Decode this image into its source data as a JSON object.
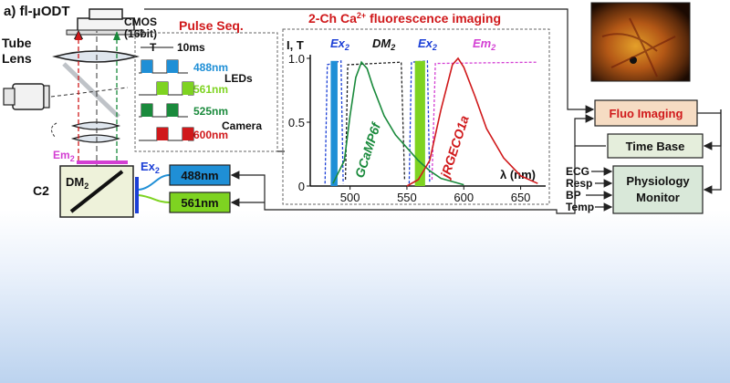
{
  "panel": {
    "label": "a) fl-μODT",
    "cmos_label_1": "CMOS",
    "cmos_label_2": "(16bit)",
    "tube_lens_1": "Tube",
    "tube_lens_2": "Lens",
    "c2_label": "C2",
    "dm2_label": "DM",
    "dm2_sub": "2",
    "em2_label": "Em",
    "em2_sub": "2",
    "ex2_label": "Ex",
    "ex2_sub": "2"
  },
  "lasers": [
    {
      "label": "488nm",
      "color": "#1f8fd6"
    },
    {
      "label": "561nm",
      "color": "#7ed321"
    }
  ],
  "pulse_seq": {
    "title": "Pulse Seq.",
    "T_label": "T",
    "period_label": "10ms",
    "leds_label": "LEDs",
    "camera_label": "Camera",
    "rows": [
      {
        "label": "488nm",
        "color": "#1f8fd6"
      },
      {
        "label": "561nm",
        "color": "#7ed321"
      },
      {
        "label": "525nm",
        "color": "#1a8a3c"
      },
      {
        "label": "600nm",
        "color": "#d0191b"
      }
    ]
  },
  "spectra": {
    "title": "2-Ch Ca",
    "title_sup": "2+",
    "title_rest": " fluorescence imaging",
    "ylabel": "I, T",
    "xlabel": "λ (nm)",
    "ticks_x": [
      "500",
      "550",
      "600",
      "650"
    ],
    "ticks_y": [
      "0",
      "0.5",
      "1.0"
    ],
    "ex2_a": "Ex",
    "ex2_b": "Ex",
    "dm2": "DM",
    "em2": "Em",
    "sub2": "2",
    "gcamp": "GCaMP6f",
    "rgeco": "jRGECO1a"
  },
  "boxes": {
    "fluo": "Fluo Imaging",
    "timebase": "Time Base",
    "physio_1": "Physiology",
    "physio_2": "Monitor"
  },
  "physio_inputs": [
    "ECG",
    "Resp",
    "BP",
    "Temp"
  ],
  "chart_data": {
    "type": "line",
    "xlabel": "λ (nm)",
    "ylabel": "I, T",
    "xlim": [
      465,
      672
    ],
    "ylim": [
      0,
      1.0
    ],
    "series": [
      {
        "name": "GCaMP6f",
        "color": "#1a8a3c",
        "x": [
          485,
          495,
          500,
          505,
          510,
          515,
          520,
          530,
          540,
          550,
          560,
          570,
          580,
          600
        ],
        "values": [
          0.02,
          0.2,
          0.55,
          0.85,
          0.97,
          0.92,
          0.78,
          0.55,
          0.4,
          0.3,
          0.2,
          0.12,
          0.06,
          0.01
        ]
      },
      {
        "name": "jRGECO1a",
        "color": "#d0191b",
        "x": [
          550,
          560,
          570,
          580,
          590,
          595,
          600,
          610,
          620,
          635,
          650,
          665
        ],
        "values": [
          0.0,
          0.05,
          0.2,
          0.6,
          0.95,
          1.0,
          0.93,
          0.7,
          0.45,
          0.22,
          0.08,
          0.02
        ]
      }
    ],
    "bands": [
      {
        "name": "Ex 488",
        "color": "#1f8fd6",
        "x": [
          483,
          489
        ]
      },
      {
        "name": "Ex 561",
        "color": "#7ed321",
        "x": [
          557,
          566
        ]
      }
    ]
  }
}
